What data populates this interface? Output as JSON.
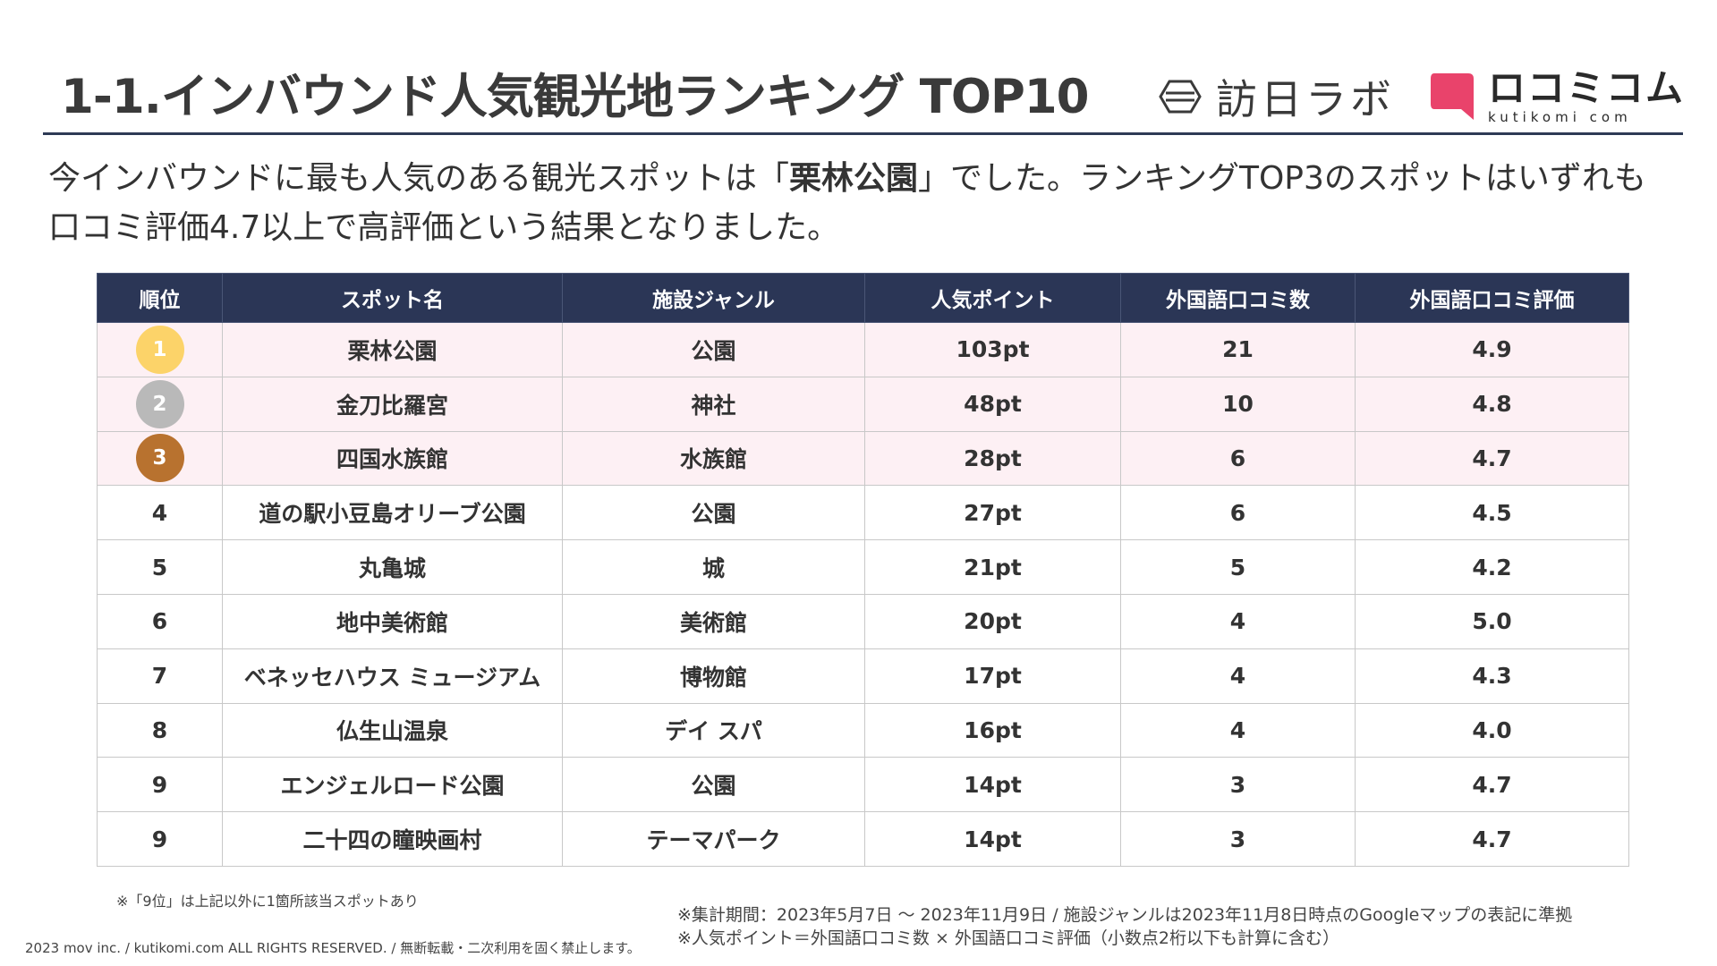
{
  "header": {
    "title": "1-1.インバウンド人気観光地ランキング TOP10",
    "logo_primary": "訪日ラボ",
    "logo_primary_icon": "hexagon-icon",
    "logo_secondary": "ロコミコム",
    "logo_secondary_sub": "kutikomi com",
    "logo_secondary_icon": "speech-bubble-icon",
    "brand_pink": "#e9436b",
    "rule_color": "#2e3a55"
  },
  "lead": {
    "before": "今インバウンドに最も人気のある観光スポットは「",
    "highlight": "栗林公園",
    "after": "」でした。ランキングTOP3のスポットはいずれも口コミ評価4.7以上で高評価という結果となりました。"
  },
  "table": {
    "header_bg": "#2b3656",
    "top3_bg": "#fdf0f4",
    "medal_colors": [
      "#fcd369",
      "#b9b9b9",
      "#b8722f"
    ],
    "columns": [
      "順位",
      "スポット名",
      "施設ジャンル",
      "人気ポイント",
      "外国語口コミ数",
      "外国語口コミ評価"
    ],
    "rows": [
      {
        "rank": "1",
        "spot": "栗林公園",
        "genre": "公園",
        "points": "103pt",
        "reviews": "21",
        "rating": "4.9"
      },
      {
        "rank": "2",
        "spot": "金刀比羅宮",
        "genre": "神社",
        "points": "48pt",
        "reviews": "10",
        "rating": "4.8"
      },
      {
        "rank": "3",
        "spot": "四国水族館",
        "genre": "水族館",
        "points": "28pt",
        "reviews": "6",
        "rating": "4.7"
      },
      {
        "rank": "4",
        "spot": "道の駅小豆島オリーブ公園",
        "genre": "公園",
        "points": "27pt",
        "reviews": "6",
        "rating": "4.5"
      },
      {
        "rank": "5",
        "spot": "丸亀城",
        "genre": "城",
        "points": "21pt",
        "reviews": "5",
        "rating": "4.2"
      },
      {
        "rank": "6",
        "spot": "地中美術館",
        "genre": "美術館",
        "points": "20pt",
        "reviews": "4",
        "rating": "5.0"
      },
      {
        "rank": "7",
        "spot": "ベネッセハウス ミュージアム",
        "genre": "博物館",
        "points": "17pt",
        "reviews": "4",
        "rating": "4.3"
      },
      {
        "rank": "8",
        "spot": "仏生山温泉",
        "genre": "デイ スパ",
        "points": "16pt",
        "reviews": "4",
        "rating": "4.0"
      },
      {
        "rank": "9",
        "spot": "エンジェルロード公園",
        "genre": "公園",
        "points": "14pt",
        "reviews": "3",
        "rating": "4.7"
      },
      {
        "rank": "9",
        "spot": "二十四の瞳映画村",
        "genre": "テーマパーク",
        "points": "14pt",
        "reviews": "3",
        "rating": "4.7"
      }
    ]
  },
  "footnotes": {
    "rank_note": "※「9位」は上記以外に1箇所該当スポットあり",
    "period": "※集計期間：2023年5月7日 ～ 2023年11月9日 / 施設ジャンルは2023年11月8日時点のGoogleマップの表記に準拠",
    "formula": "※人気ポイント＝外国語口コミ数 × 外国語口コミ評価（小数点2桁以下も計算に含む）",
    "copyright": "2023 mov inc. / kutikomi.com ALL RIGHTS RESERVED. / 無断転載・二次利用を固く禁止します。"
  }
}
